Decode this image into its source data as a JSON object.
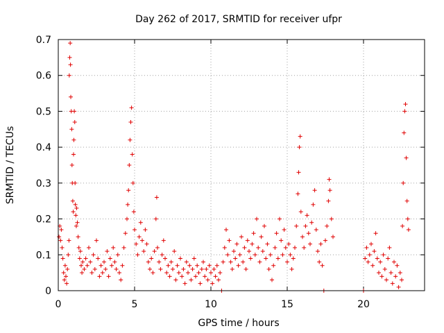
{
  "chart_data": {
    "type": "scatter",
    "title": "Day 262 of 2017, SRMTID for receiver ufpr",
    "xlabel": "GPS time / hours",
    "ylabel": "SRMTID / TECUs",
    "xlim": [
      0,
      24
    ],
    "ylim": [
      0,
      0.7
    ],
    "xticks": [
      0,
      5,
      10,
      15,
      20
    ],
    "yticks": [
      0,
      0.1,
      0.2,
      0.3,
      0.4,
      0.5,
      0.6,
      0.7
    ],
    "grid": true,
    "marker": "+",
    "color": "#e00000",
    "series": [
      {
        "name": "SRMTID",
        "points": [
          [
            0.05,
            0.15
          ],
          [
            0.1,
            0.18
          ],
          [
            0.15,
            0.14
          ],
          [
            0.2,
            0.17
          ],
          [
            0.25,
            0.12
          ],
          [
            0.3,
            0.09
          ],
          [
            0.35,
            0.05
          ],
          [
            0.4,
            0.03
          ],
          [
            0.45,
            0.07
          ],
          [
            0.5,
            0.04
          ],
          [
            0.55,
            0.02
          ],
          [
            0.6,
            0.06
          ],
          [
            0.65,
            0.1
          ],
          [
            0.7,
            0.14
          ],
          [
            0.72,
            0.6
          ],
          [
            0.75,
            0.65
          ],
          [
            0.78,
            0.69
          ],
          [
            0.8,
            0.63
          ],
          [
            0.82,
            0.54
          ],
          [
            0.85,
            0.5
          ],
          [
            0.88,
            0.45
          ],
          [
            0.9,
            0.35
          ],
          [
            0.92,
            0.3
          ],
          [
            0.95,
            0.25
          ],
          [
            0.98,
            0.22
          ],
          [
            1.0,
            0.38
          ],
          [
            1.02,
            0.42
          ],
          [
            1.05,
            0.5
          ],
          [
            1.08,
            0.47
          ],
          [
            1.1,
            0.3
          ],
          [
            1.12,
            0.24
          ],
          [
            1.15,
            0.21
          ],
          [
            1.18,
            0.18
          ],
          [
            1.2,
            0.23
          ],
          [
            1.25,
            0.19
          ],
          [
            1.3,
            0.15
          ],
          [
            1.35,
            0.12
          ],
          [
            1.4,
            0.09
          ],
          [
            1.45,
            0.11
          ],
          [
            1.5,
            0.07
          ],
          [
            1.55,
            0.05
          ],
          [
            1.6,
            0.08
          ],
          [
            1.7,
            0.06
          ],
          [
            1.8,
            0.09
          ],
          [
            1.9,
            0.07
          ],
          [
            2.0,
            0.12
          ],
          [
            2.1,
            0.08
          ],
          [
            2.2,
            0.05
          ],
          [
            2.3,
            0.1
          ],
          [
            2.4,
            0.06
          ],
          [
            2.5,
            0.14
          ],
          [
            2.6,
            0.09
          ],
          [
            2.7,
            0.04
          ],
          [
            2.8,
            0.07
          ],
          [
            2.9,
            0.05
          ],
          [
            3.0,
            0.08
          ],
          [
            3.1,
            0.06
          ],
          [
            3.2,
            0.11
          ],
          [
            3.3,
            0.04
          ],
          [
            3.4,
            0.09
          ],
          [
            3.5,
            0.07
          ],
          [
            3.6,
            0.12
          ],
          [
            3.7,
            0.08
          ],
          [
            3.8,
            0.06
          ],
          [
            3.9,
            0.1
          ],
          [
            4.0,
            0.05
          ],
          [
            4.1,
            0.03
          ],
          [
            4.2,
            0.07
          ],
          [
            4.3,
            0.12
          ],
          [
            4.4,
            0.16
          ],
          [
            4.5,
            0.2
          ],
          [
            4.55,
            0.24
          ],
          [
            4.6,
            0.28
          ],
          [
            4.65,
            0.35
          ],
          [
            4.7,
            0.42
          ],
          [
            4.75,
            0.47
          ],
          [
            4.8,
            0.51
          ],
          [
            4.85,
            0.38
          ],
          [
            4.9,
            0.3
          ],
          [
            4.95,
            0.22
          ],
          [
            5.0,
            0.17
          ],
          [
            5.1,
            0.13
          ],
          [
            5.2,
            0.1
          ],
          [
            5.3,
            0.15
          ],
          [
            5.4,
            0.19
          ],
          [
            5.5,
            0.14
          ],
          [
            5.6,
            0.11
          ],
          [
            5.7,
            0.17
          ],
          [
            5.8,
            0.13
          ],
          [
            5.9,
            0.08
          ],
          [
            6.0,
            0.06
          ],
          [
            6.1,
            0.09
          ],
          [
            6.2,
            0.05
          ],
          [
            6.3,
            0.11
          ],
          [
            6.4,
            0.2
          ],
          [
            6.45,
            0.26
          ],
          [
            6.5,
            0.12
          ],
          [
            6.6,
            0.08
          ],
          [
            6.7,
            0.06
          ],
          [
            6.8,
            0.1
          ],
          [
            6.9,
            0.14
          ],
          [
            7.0,
            0.09
          ],
          [
            7.1,
            0.05
          ],
          [
            7.2,
            0.07
          ],
          [
            7.3,
            0.04
          ],
          [
            7.4,
            0.08
          ],
          [
            7.5,
            0.06
          ],
          [
            7.6,
            0.11
          ],
          [
            7.7,
            0.03
          ],
          [
            7.8,
            0.07
          ],
          [
            7.9,
            0.05
          ],
          [
            8.0,
            0.09
          ],
          [
            8.1,
            0.04
          ],
          [
            8.2,
            0.06
          ],
          [
            8.3,
            0.02
          ],
          [
            8.4,
            0.08
          ],
          [
            8.5,
            0.05
          ],
          [
            8.6,
            0.07
          ],
          [
            8.7,
            0.03
          ],
          [
            8.8,
            0.06
          ],
          [
            8.9,
            0.09
          ],
          [
            9.0,
            0.04
          ],
          [
            9.1,
            0.07
          ],
          [
            9.2,
            0.05
          ],
          [
            9.3,
            0.02
          ],
          [
            9.4,
            0.06
          ],
          [
            9.5,
            0.08
          ],
          [
            9.6,
            0.04
          ],
          [
            9.7,
            0.06
          ],
          [
            9.8,
            0.03
          ],
          [
            9.9,
            0.07
          ],
          [
            10.0,
            0.05
          ],
          [
            10.1,
            0.02
          ],
          [
            10.2,
            0.06
          ],
          [
            10.3,
            0.04
          ],
          [
            10.4,
            0.07
          ],
          [
            10.5,
            0.03
          ],
          [
            10.6,
            0.05
          ],
          [
            10.7,
            0.0
          ],
          [
            10.8,
            0.08
          ],
          [
            10.9,
            0.12
          ],
          [
            11.0,
            0.17
          ],
          [
            11.1,
            0.1
          ],
          [
            11.2,
            0.14
          ],
          [
            11.3,
            0.08
          ],
          [
            11.4,
            0.06
          ],
          [
            11.5,
            0.11
          ],
          [
            11.6,
            0.09
          ],
          [
            11.7,
            0.13
          ],
          [
            11.8,
            0.07
          ],
          [
            11.9,
            0.1
          ],
          [
            12.0,
            0.15
          ],
          [
            12.1,
            0.08
          ],
          [
            12.2,
            0.12
          ],
          [
            12.3,
            0.06
          ],
          [
            12.4,
            0.14
          ],
          [
            12.5,
            0.11
          ],
          [
            12.6,
            0.09
          ],
          [
            12.7,
            0.13
          ],
          [
            12.8,
            0.16
          ],
          [
            12.9,
            0.1
          ],
          [
            13.0,
            0.2
          ],
          [
            13.1,
            0.12
          ],
          [
            13.2,
            0.08
          ],
          [
            13.3,
            0.15
          ],
          [
            13.4,
            0.11
          ],
          [
            13.5,
            0.18
          ],
          [
            13.6,
            0.09
          ],
          [
            13.7,
            0.13
          ],
          [
            13.8,
            0.06
          ],
          [
            13.9,
            0.1
          ],
          [
            14.0,
            0.03
          ],
          [
            14.1,
            0.07
          ],
          [
            14.2,
            0.12
          ],
          [
            14.3,
            0.16
          ],
          [
            14.4,
            0.09
          ],
          [
            14.5,
            0.2
          ],
          [
            14.6,
            0.14
          ],
          [
            14.7,
            0.1
          ],
          [
            14.8,
            0.17
          ],
          [
            14.9,
            0.12
          ],
          [
            15.0,
            0.08
          ],
          [
            15.1,
            0.13
          ],
          [
            15.2,
            0.1
          ],
          [
            15.3,
            0.06
          ],
          [
            15.4,
            0.09
          ],
          [
            15.5,
            0.12
          ],
          [
            15.6,
            0.18
          ],
          [
            15.7,
            0.27
          ],
          [
            15.75,
            0.33
          ],
          [
            15.8,
            0.4
          ],
          [
            15.85,
            0.43
          ],
          [
            15.9,
            0.22
          ],
          [
            16.0,
            0.15
          ],
          [
            16.1,
            0.12
          ],
          [
            16.2,
            0.18
          ],
          [
            16.3,
            0.21
          ],
          [
            16.4,
            0.16
          ],
          [
            16.5,
            0.13
          ],
          [
            16.6,
            0.19
          ],
          [
            16.7,
            0.24
          ],
          [
            16.8,
            0.28
          ],
          [
            16.9,
            0.17
          ],
          [
            17.0,
            0.11
          ],
          [
            17.1,
            0.08
          ],
          [
            17.2,
            0.13
          ],
          [
            17.3,
            0.07
          ],
          [
            17.4,
            0.0
          ],
          [
            17.5,
            0.14
          ],
          [
            17.6,
            0.18
          ],
          [
            17.7,
            0.25
          ],
          [
            17.75,
            0.31
          ],
          [
            17.8,
            0.28
          ],
          [
            17.9,
            0.2
          ],
          [
            18.0,
            0.15
          ],
          [
            20.0,
            0.0
          ],
          [
            20.1,
            0.09
          ],
          [
            20.2,
            0.12
          ],
          [
            20.3,
            0.08
          ],
          [
            20.4,
            0.1
          ],
          [
            20.5,
            0.13
          ],
          [
            20.6,
            0.07
          ],
          [
            20.7,
            0.11
          ],
          [
            20.8,
            0.16
          ],
          [
            20.9,
            0.09
          ],
          [
            21.0,
            0.05
          ],
          [
            21.1,
            0.08
          ],
          [
            21.2,
            0.04
          ],
          [
            21.3,
            0.1
          ],
          [
            21.4,
            0.06
          ],
          [
            21.5,
            0.03
          ],
          [
            21.6,
            0.09
          ],
          [
            21.7,
            0.12
          ],
          [
            21.8,
            0.05
          ],
          [
            21.9,
            0.02
          ],
          [
            22.0,
            0.08
          ],
          [
            22.1,
            0.04
          ],
          [
            22.2,
            0.07
          ],
          [
            22.3,
            0.01
          ],
          [
            22.4,
            0.05
          ],
          [
            22.5,
            0.03
          ],
          [
            22.55,
            0.18
          ],
          [
            22.6,
            0.3
          ],
          [
            22.65,
            0.44
          ],
          [
            22.7,
            0.5
          ],
          [
            22.75,
            0.52
          ],
          [
            22.8,
            0.37
          ],
          [
            22.85,
            0.25
          ],
          [
            22.9,
            0.2
          ],
          [
            22.95,
            0.17
          ]
        ]
      }
    ]
  }
}
